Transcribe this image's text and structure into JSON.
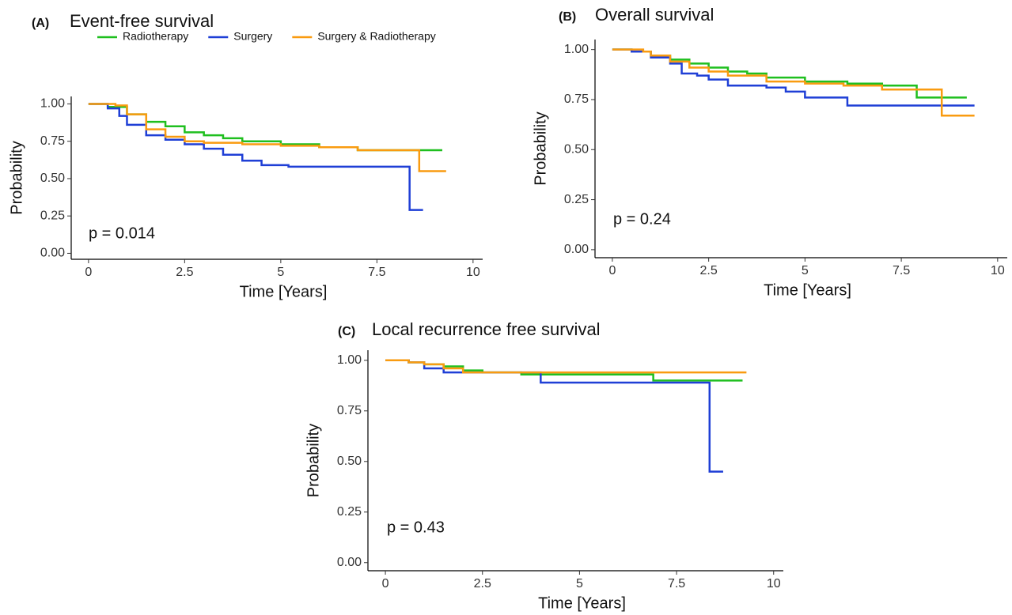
{
  "chart_data": [
    {
      "type": "step",
      "panel_label": "(A)",
      "title": "Event-free survival",
      "x_label": "Time [Years]",
      "y_label": "Probability",
      "annotation": "p = 0.014",
      "xlim": [
        -0.45,
        10.25
      ],
      "ylim": [
        -0.04,
        1.05
      ],
      "xticks": [
        0,
        2.5,
        5,
        7.5,
        10
      ],
      "yticks": [
        {
          "value": 0,
          "label": "0.00"
        },
        0.25,
        {
          "value": 0.5,
          "label": "0.50"
        },
        0.75,
        {
          "value": 1,
          "label": "1.00"
        }
      ],
      "legend": "top",
      "series": [
        {
          "name": "Radiotherapy",
          "color": "#1fbf1f",
          "x": [
            0,
            0.5,
            1,
            1.5,
            2,
            2.5,
            3,
            3.5,
            4,
            5,
            6,
            7,
            9.2
          ],
          "values": [
            1,
            0.98,
            0.93,
            0.88,
            0.85,
            0.81,
            0.79,
            0.77,
            0.75,
            0.73,
            0.71,
            0.69,
            0.69
          ]
        },
        {
          "name": "Surgery",
          "color": "#1f3fd6",
          "x": [
            0,
            0.5,
            0.8,
            1,
            1.5,
            2,
            2.5,
            3,
            3.5,
            4,
            4.5,
            5.2,
            8.35,
            8.7
          ],
          "values": [
            1,
            0.97,
            0.92,
            0.86,
            0.79,
            0.76,
            0.73,
            0.7,
            0.66,
            0.62,
            0.59,
            0.58,
            0.29,
            0.29
          ]
        },
        {
          "name": "Surgery & Radiotherapy",
          "color": "#f99b10",
          "x": [
            0,
            0.7,
            1,
            1.5,
            2,
            2.5,
            3,
            4,
            5,
            6,
            7,
            8.6,
            9.3
          ],
          "values": [
            1,
            0.99,
            0.93,
            0.83,
            0.78,
            0.75,
            0.74,
            0.73,
            0.72,
            0.71,
            0.69,
            0.55,
            0.55
          ]
        }
      ]
    },
    {
      "type": "step",
      "panel_label": "(B)",
      "title": "Overall survival",
      "x_label": "Time [Years]",
      "y_label": "Probability",
      "annotation": "p = 0.24",
      "xlim": [
        -0.45,
        10.25
      ],
      "ylim": [
        -0.04,
        1.05
      ],
      "xticks": [
        0,
        2.5,
        5,
        7.5,
        10
      ],
      "yticks": [
        {
          "value": 0,
          "label": "0.00"
        },
        0.25,
        {
          "value": 0.5,
          "label": "0.50"
        },
        0.75,
        {
          "value": 1,
          "label": "1.00"
        }
      ],
      "series": [
        {
          "color": "#1fbf1f",
          "x": [
            0,
            0.5,
            1,
            1.5,
            2,
            2.5,
            3,
            3.5,
            4,
            5,
            6.1,
            7,
            7.9,
            9.2
          ],
          "values": [
            1,
            0.99,
            0.97,
            0.95,
            0.93,
            0.91,
            0.89,
            0.88,
            0.86,
            0.84,
            0.83,
            0.82,
            0.76,
            0.76
          ]
        },
        {
          "color": "#1f3fd6",
          "x": [
            0,
            0.5,
            1,
            1.5,
            1.8,
            2.2,
            2.5,
            3,
            4,
            4.5,
            5,
            6.1,
            9.4
          ],
          "values": [
            1,
            0.99,
            0.96,
            0.93,
            0.88,
            0.87,
            0.85,
            0.82,
            0.81,
            0.79,
            0.76,
            0.72,
            0.72
          ]
        },
        {
          "color": "#f99b10",
          "x": [
            0,
            0.8,
            1,
            1.5,
            2,
            2.5,
            3,
            4,
            5,
            6,
            7,
            8.55,
            9.4
          ],
          "values": [
            1,
            0.99,
            0.97,
            0.94,
            0.91,
            0.89,
            0.87,
            0.84,
            0.83,
            0.82,
            0.8,
            0.67,
            0.67
          ]
        }
      ]
    },
    {
      "type": "step",
      "panel_label": "(C)",
      "title": "Local recurrence free survival",
      "x_label": "Time [Years]",
      "y_label": "Probability",
      "annotation": "p = 0.43",
      "xlim": [
        -0.45,
        10.25
      ],
      "ylim": [
        -0.04,
        1.05
      ],
      "xticks": [
        0,
        2.5,
        5,
        7.5,
        10
      ],
      "yticks": [
        {
          "value": 0,
          "label": "0.00"
        },
        0.25,
        {
          "value": 0.5,
          "label": "0.50"
        },
        0.75,
        {
          "value": 1,
          "label": "1.00"
        }
      ],
      "series": [
        {
          "color": "#1fbf1f",
          "x": [
            0,
            0.6,
            1,
            1.5,
            2,
            2.5,
            3.5,
            6.9,
            9.2
          ],
          "values": [
            1,
            0.99,
            0.98,
            0.97,
            0.95,
            0.94,
            0.93,
            0.9,
            0.9
          ]
        },
        {
          "color": "#1f3fd6",
          "x": [
            0,
            0.6,
            1,
            1.5,
            4,
            8.35,
            8.7
          ],
          "values": [
            1,
            0.99,
            0.96,
            0.94,
            0.89,
            0.45,
            0.45
          ]
        },
        {
          "color": "#f99b10",
          "x": [
            0,
            0.6,
            1,
            1.5,
            2,
            9.3
          ],
          "values": [
            1,
            0.99,
            0.98,
            0.96,
            0.94,
            0.94
          ]
        }
      ]
    }
  ]
}
